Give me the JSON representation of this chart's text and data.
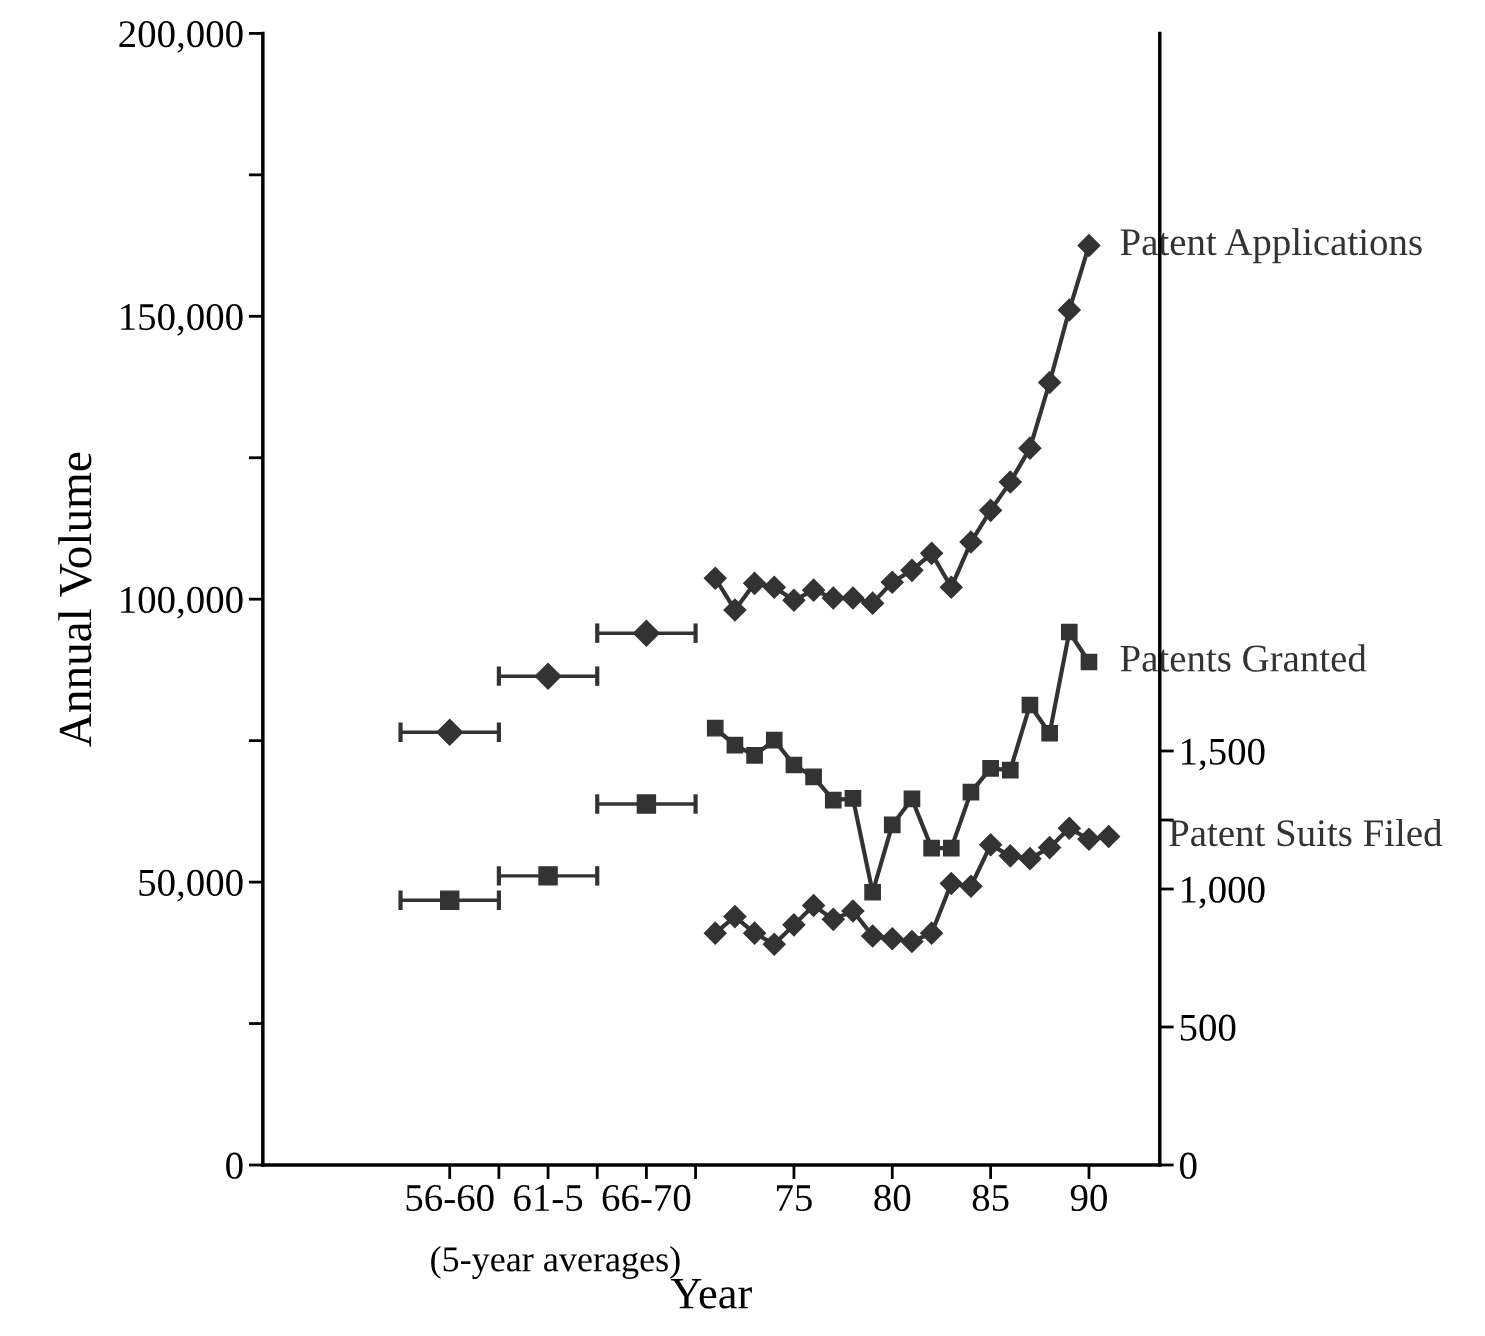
{
  "chart_data": {
    "type": "line",
    "xlabel": "Year",
    "ylabel": "Annual Volume",
    "grid": false,
    "legend": false,
    "xlim": [
      48,
      93.6
    ],
    "xticks": [
      {
        "value": 57.5,
        "label": "56-60"
      },
      {
        "value": 60,
        "label": null
      },
      {
        "value": 62.5,
        "label": "61-5"
      },
      {
        "value": 65,
        "label": null
      },
      {
        "value": 67.5,
        "label": "66-70"
      },
      {
        "value": 70,
        "label": null
      },
      75,
      80,
      85,
      90
    ],
    "ylim": [
      0,
      200000
    ],
    "yticks": [
      0,
      {
        "value": 25000,
        "label": null
      },
      {
        "value": 50000,
        "label": "50,000"
      },
      {
        "value": 75000,
        "label": null
      },
      {
        "value": 100000,
        "label": "100,000"
      },
      {
        "value": 125000,
        "label": null
      },
      {
        "value": 150000,
        "label": "150,000"
      },
      {
        "value": 175000,
        "label": null
      },
      {
        "value": 200000,
        "label": "200,000"
      }
    ],
    "y2lim": [
      0,
      4100
    ],
    "y2ticks": [
      0,
      500,
      {
        "value": 1000,
        "label": "1,000"
      },
      {
        "value": 1250,
        "label": null
      },
      {
        "value": 1500,
        "label": "1,500"
      }
    ],
    "annotations": [
      "(5-year averages)"
    ],
    "series": [
      {
        "name": "Patent Applications",
        "marker": "diamond",
        "color": "#333333",
        "x": [
          71,
          72,
          73,
          74,
          75,
          76,
          77,
          78,
          79,
          80,
          81,
          82,
          83,
          84,
          85,
          86,
          87,
          88,
          89,
          90
        ],
        "values": [
          103700,
          98100,
          102800,
          102100,
          99800,
          101600,
          100200,
          100200,
          99300,
          103000,
          105100,
          108100,
          102100,
          110100,
          115700,
          120700,
          126700,
          138300,
          151100,
          162500
        ]
      },
      {
        "type": "scatter",
        "marker": "diamond",
        "color": "#333333",
        "x": [
          57.5,
          62.5,
          67.5
        ],
        "values": [
          76500,
          86400,
          94000
        ],
        "xerrors": [
          2.5,
          2.5,
          2.5
        ]
      },
      {
        "name": "Patents Granted",
        "marker": "square",
        "color": "#333333",
        "x": [
          71,
          72,
          73,
          74,
          75,
          76,
          77,
          78,
          79,
          80,
          81,
          82,
          83,
          84,
          85,
          86,
          87,
          88,
          89,
          90
        ],
        "values": [
          77200,
          74200,
          72400,
          75100,
          70700,
          68600,
          64500,
          64800,
          48200,
          60100,
          64700,
          56000,
          56000,
          65900,
          70100,
          69800,
          81300,
          76300,
          94200,
          88900
        ]
      },
      {
        "type": "scatter",
        "marker": "square",
        "color": "#333333",
        "x": [
          57.5,
          62.5,
          67.5
        ],
        "values": [
          46800,
          51100,
          63800
        ],
        "xerrors": [
          2.5,
          2.5,
          2.5
        ]
      },
      {
        "name": "Patent Suits Filed",
        "marker": "diamond",
        "color": "#333333",
        "axis": "y2",
        "x": [
          71,
          72,
          73,
          74,
          75,
          76,
          77,
          78,
          79,
          80,
          81,
          82,
          83,
          84,
          85,
          86,
          87,
          88,
          89,
          90,
          91
        ],
        "values": [
          840,
          900,
          840,
          800,
          870,
          940,
          890,
          920,
          830,
          820,
          810,
          840,
          1020,
          1010,
          1160,
          1120,
          1110,
          1150,
          1220,
          1180,
          1190
        ]
      }
    ]
  }
}
